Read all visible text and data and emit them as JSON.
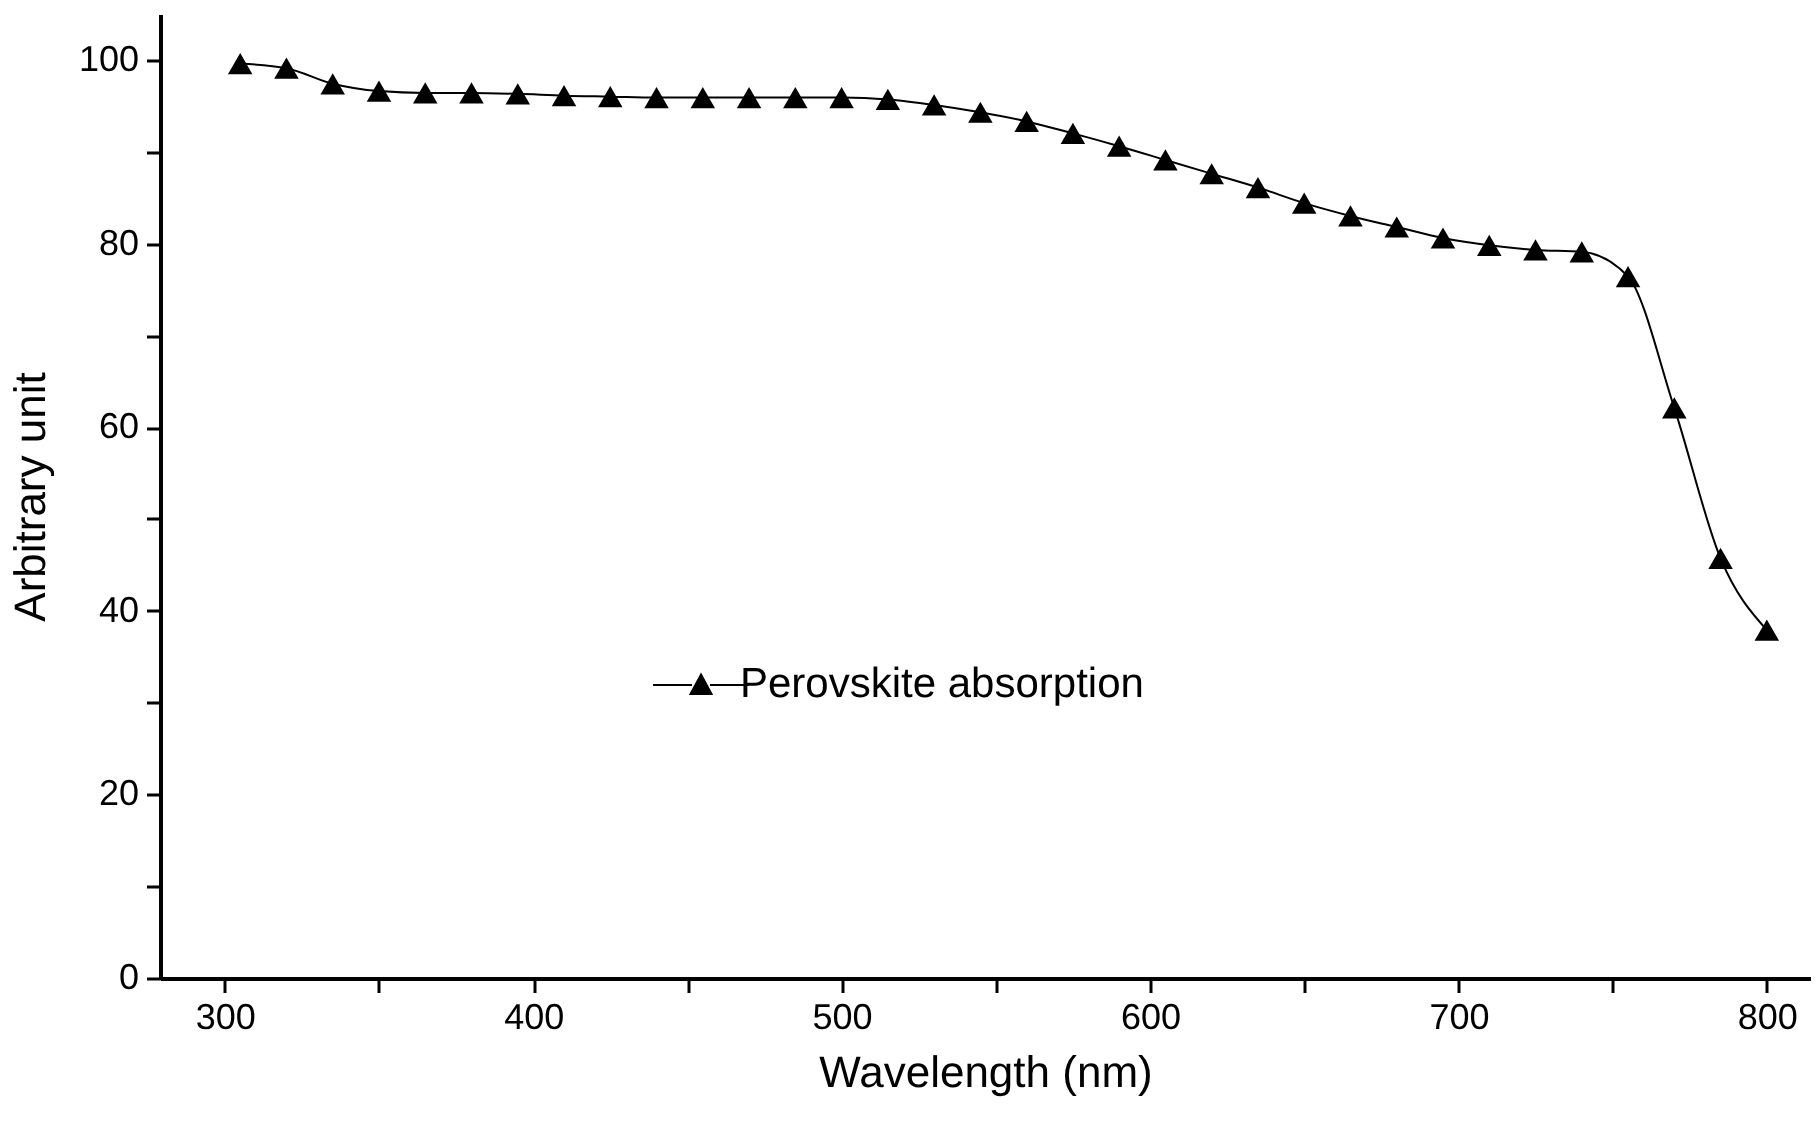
{
  "chart_data": {
    "type": "line",
    "xlabel": "Wavelength (nm)",
    "ylabel": "Arbitrary unit",
    "x": [
      305,
      320,
      335,
      350,
      365,
      380,
      395,
      410,
      425,
      440,
      455,
      470,
      485,
      500,
      515,
      530,
      545,
      560,
      575,
      590,
      605,
      620,
      635,
      650,
      665,
      680,
      695,
      710,
      725,
      740,
      755,
      770,
      785,
      800
    ],
    "series": [
      {
        "name": "Perovskite absorption",
        "color": "#000000",
        "values": [
          99.6,
          99.1,
          97.4,
          96.6,
          96.4,
          96.4,
          96.3,
          96.1,
          96.0,
          95.9,
          95.9,
          95.9,
          95.9,
          95.9,
          95.7,
          95.1,
          94.3,
          93.3,
          92.0,
          90.6,
          89.1,
          87.6,
          86.1,
          84.4,
          83.0,
          81.8,
          80.6,
          79.8,
          79.3,
          79.1,
          76.4,
          62.1,
          45.7,
          37.9
        ]
      }
    ],
    "xlim": [
      279,
      814
    ],
    "ylim": [
      0,
      105
    ],
    "xticks": [
      300,
      {
        "value": 350,
        "label": null
      },
      400,
      {
        "value": 450,
        "label": null
      },
      500,
      {
        "value": 550,
        "label": null
      },
      600,
      {
        "value": 650,
        "label": null
      },
      700,
      {
        "value": 750,
        "label": null
      },
      800
    ],
    "yticks": [
      0,
      {
        "value": 10,
        "label": null
      },
      20,
      {
        "value": 30,
        "label": null
      },
      40,
      {
        "value": 50,
        "label": null
      },
      60,
      {
        "value": 70,
        "label": null
      },
      80,
      {
        "value": 90,
        "label": null
      },
      100
    ],
    "marker": "triangle",
    "line_style": "solid",
    "legend": "left"
  }
}
